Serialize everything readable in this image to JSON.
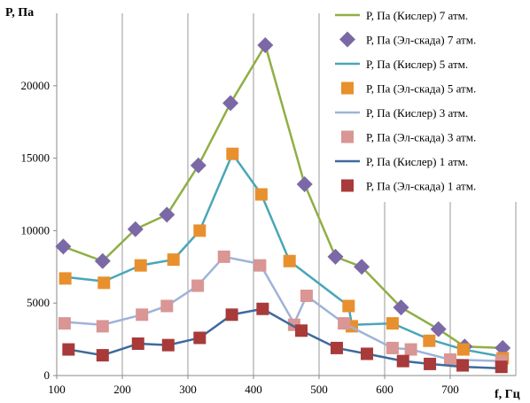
{
  "chart_data": {
    "type": "line",
    "ylabel": "P, Па",
    "xlabel": "f, Гц",
    "xlim": [
      100,
      800
    ],
    "ylim": [
      0,
      25000
    ],
    "xticks": [
      100,
      200,
      300,
      400,
      500,
      600,
      700
    ],
    "yticks": [
      0,
      5000,
      10000,
      15000,
      20000
    ],
    "grid": "vertical",
    "legend_position": "top-right",
    "series": [
      {
        "name": "P, Па (Кислер) 7 атм.",
        "kind": "line",
        "color": "#8FAF45",
        "x": [
          110,
          170,
          220,
          268,
          316,
          365,
          418,
          478,
          525,
          565,
          625,
          682,
          722,
          780
        ],
        "y": [
          8900,
          7900,
          10100,
          11100,
          14500,
          18800,
          22800,
          13200,
          8200,
          7500,
          4700,
          3200,
          2000,
          1900
        ]
      },
      {
        "name": "P, Па (Эл-скада) 7 атм.",
        "kind": "marker",
        "marker": "diamond",
        "color": "#7B68A6",
        "x": [
          110,
          170,
          220,
          268,
          316,
          365,
          418,
          478,
          525,
          565,
          625,
          682,
          722,
          780
        ],
        "y": [
          8900,
          7900,
          10100,
          11100,
          14500,
          18800,
          22800,
          13200,
          8200,
          7500,
          4700,
          3200,
          2000,
          1900
        ]
      },
      {
        "name": "P, Па (Кислер) 5 атм.",
        "kind": "line",
        "color": "#4AA6B8",
        "x": [
          113,
          172,
          228,
          278,
          318,
          368,
          412,
          455,
          545,
          550,
          612,
          668,
          720,
          780
        ],
        "y": [
          6800,
          6500,
          7600,
          8000,
          10000,
          15300,
          12500,
          7900,
          4800,
          3500,
          3600,
          2500,
          1800,
          1300
        ]
      },
      {
        "name": "P, Па (Эл-скада) 5 атм.",
        "kind": "marker",
        "marker": "square",
        "color": "#E8902E",
        "x": [
          113,
          172,
          228,
          278,
          318,
          368,
          412,
          455,
          545,
          550,
          612,
          668,
          720,
          780
        ],
        "y": [
          6700,
          6400,
          7600,
          8000,
          10000,
          15300,
          12500,
          7900,
          4800,
          3400,
          3600,
          2400,
          1800,
          1200
        ]
      },
      {
        "name": "P, Па (Кислер) 3 атм.",
        "kind": "line",
        "color": "#9FB3D8",
        "x": [
          112,
          170,
          230,
          268,
          315,
          355,
          410,
          462,
          481,
          538,
          612,
          640,
          700,
          778
        ],
        "y": [
          3700,
          3500,
          4200,
          4800,
          6200,
          8200,
          7700,
          3600,
          5500,
          3600,
          1900,
          1800,
          1100,
          1000
        ]
      },
      {
        "name": "P, Па (Эл-скада) 3 атм.",
        "kind": "marker",
        "marker": "square",
        "color": "#D99694",
        "x": [
          112,
          170,
          230,
          268,
          315,
          355,
          410,
          462,
          481,
          538,
          612,
          640,
          700,
          778
        ],
        "y": [
          3600,
          3400,
          4200,
          4800,
          6200,
          8200,
          7600,
          3500,
          5500,
          3600,
          1900,
          1800,
          1100,
          1000
        ]
      },
      {
        "name": "P, Па (Кислер) 1 атм.",
        "kind": "line",
        "color": "#3E6A9E",
        "x": [
          118,
          170,
          224,
          270,
          318,
          367,
          414,
          473,
          527,
          573,
          628,
          669,
          719,
          778
        ],
        "y": [
          1800,
          1400,
          2200,
          2100,
          2600,
          4200,
          4600,
          3100,
          1900,
          1500,
          1000,
          800,
          600,
          500
        ]
      },
      {
        "name": "P, Па (Эл-скада) 1 атм.",
        "kind": "marker",
        "marker": "square",
        "color": "#A83A3A",
        "x": [
          118,
          170,
          224,
          270,
          318,
          367,
          414,
          473,
          527,
          573,
          628,
          669,
          719,
          778
        ],
        "y": [
          1800,
          1400,
          2200,
          2100,
          2600,
          4200,
          4600,
          3100,
          1900,
          1500,
          1000,
          800,
          700,
          600
        ]
      }
    ]
  }
}
